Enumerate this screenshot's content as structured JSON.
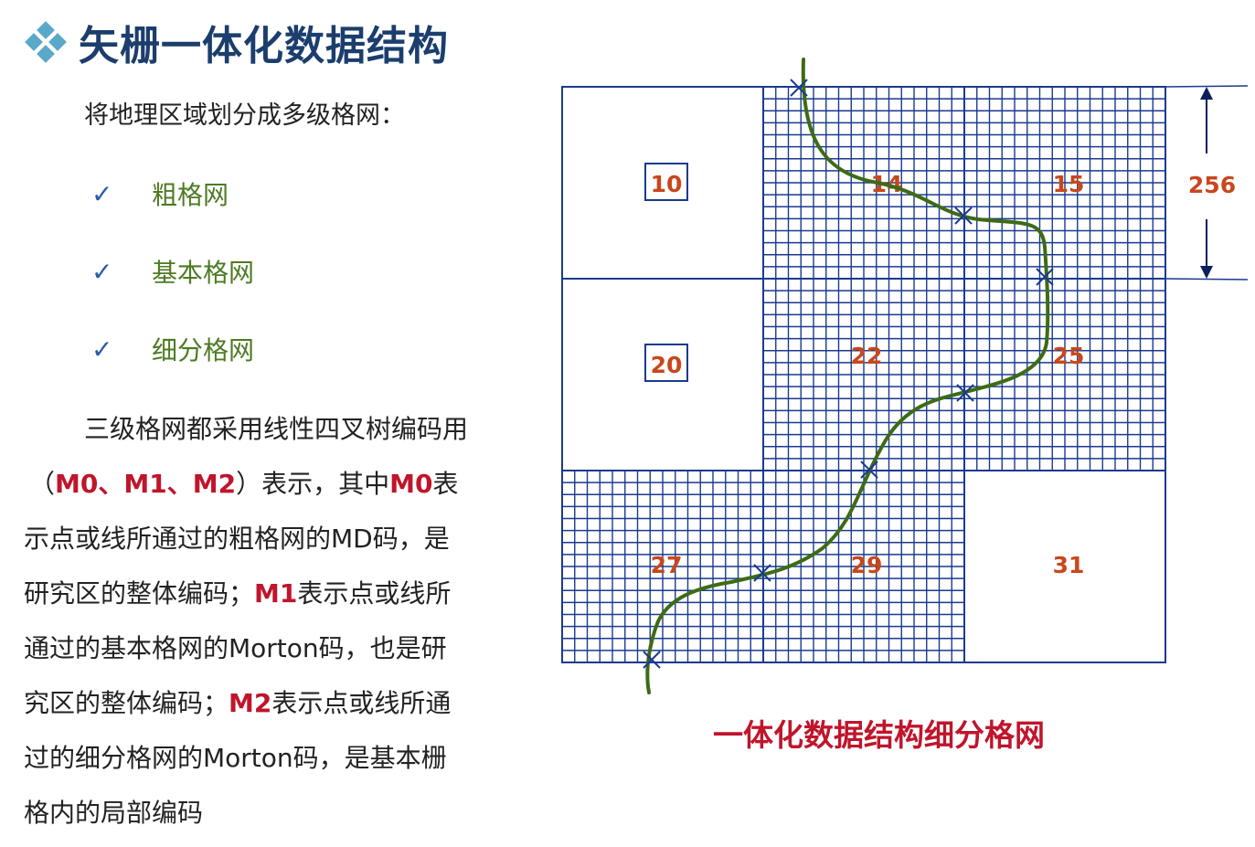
{
  "header": {
    "title": "矢栅一体化数据结构"
  },
  "intro": "将地理区域划分成多级格网：",
  "grid_levels": [
    "粗格网",
    "基本格网",
    "细分格网"
  ],
  "check_symbol": "✓",
  "paragraph": {
    "lines": [
      [
        {
          "t": "三级格网都采用线性四叉树编码用"
        }
      ],
      [
        {
          "t": "（"
        },
        {
          "t": "M0、M1、M2",
          "hl": true
        },
        {
          "t": "）表示，其中"
        },
        {
          "t": "M0",
          "hl": true
        },
        {
          "t": "表"
        }
      ],
      [
        {
          "t": "示点或线所通过的粗格网的MD码，是"
        }
      ],
      [
        {
          "t": "研究区的整体编码；"
        },
        {
          "t": "M1",
          "hl": true
        },
        {
          "t": "表示点或线所"
        }
      ],
      [
        {
          "t": "通过的基本格网的Morton码，也是研"
        }
      ],
      [
        {
          "t": "究区的整体编码；"
        },
        {
          "t": "M2",
          "hl": true
        },
        {
          "t": "表示点或线所通"
        }
      ],
      [
        {
          "t": "过的细分格网的Morton码，是基本栅"
        }
      ],
      [
        {
          "t": "格内的局部编码"
        }
      ]
    ]
  },
  "diagram": {
    "cell_labels": [
      {
        "text": "10",
        "boxed": true
      },
      {
        "text": "14",
        "boxed": false
      },
      {
        "text": "15",
        "boxed": false
      },
      {
        "text": "20",
        "boxed": true
      },
      {
        "text": "22",
        "boxed": false
      },
      {
        "text": "25",
        "boxed": false
      },
      {
        "text": "27",
        "boxed": false
      },
      {
        "text": "29",
        "boxed": false
      },
      {
        "text": "31",
        "boxed": false
      }
    ],
    "dimension_label": "256",
    "caption": "一体化数据结构细分格网"
  },
  "colors": {
    "grid": "#1a3a8f",
    "label": "#c8471d",
    "curve": "#3d6b15",
    "title": "#1b3e6e",
    "highlight": "#c0152b",
    "check": "#2b5aa8",
    "level_text": "#4e7a23"
  }
}
